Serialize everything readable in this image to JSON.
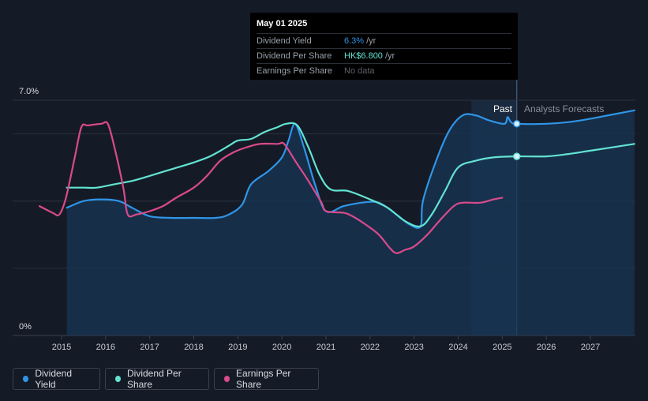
{
  "tooltip": {
    "date": "May 01 2025",
    "rows": [
      {
        "name": "Dividend Yield",
        "value": "6.3%",
        "unit": "/yr"
      },
      {
        "name": "Dividend Per Share",
        "value": "HK$6.800",
        "unit": "/yr"
      },
      {
        "name": "Earnings Per Share",
        "value": "No data",
        "unit": ""
      }
    ]
  },
  "labels": {
    "past": "Past",
    "forecast": "Analysts Forecasts"
  },
  "legend": {
    "items": [
      {
        "label": "Dividend Yield",
        "color": "#2f95e8"
      },
      {
        "label": "Dividend Per Share",
        "color": "#62e3d2"
      },
      {
        "label": "Earnings Per Share",
        "color": "#d94a8c"
      }
    ]
  },
  "chart_data": {
    "type": "line",
    "y_axis_labels": [
      "7.0%",
      "0%"
    ],
    "ylim": [
      0,
      7.0
    ],
    "x_ticks": [
      "2015",
      "2016",
      "2017",
      "2018",
      "2019",
      "2020",
      "2021",
      "2022",
      "2023",
      "2024",
      "2025",
      "2026",
      "2027"
    ],
    "xlim": [
      2014.0,
      2028.0
    ],
    "grid": true,
    "legend_position": "bottom",
    "highlight_date": 2025.33,
    "forecast_start": 2025.33,
    "series": [
      {
        "name": "Dividend Yield",
        "color": "#2f95e8",
        "filled": true,
        "points": [
          [
            2015.12,
            3.8
          ],
          [
            2015.5,
            4.0
          ],
          [
            2015.9,
            4.05
          ],
          [
            2016.3,
            4.0
          ],
          [
            2016.6,
            3.8
          ],
          [
            2017.0,
            3.55
          ],
          [
            2017.5,
            3.5
          ],
          [
            2018.0,
            3.5
          ],
          [
            2018.5,
            3.5
          ],
          [
            2018.8,
            3.6
          ],
          [
            2019.1,
            3.9
          ],
          [
            2019.3,
            4.5
          ],
          [
            2019.7,
            4.9
          ],
          [
            2020.0,
            5.3
          ],
          [
            2020.15,
            5.8
          ],
          [
            2020.3,
            6.3
          ],
          [
            2020.5,
            5.6
          ],
          [
            2020.75,
            4.5
          ],
          [
            2021.0,
            3.7
          ],
          [
            2021.4,
            3.85
          ],
          [
            2021.8,
            3.95
          ],
          [
            2022.2,
            3.95
          ],
          [
            2022.6,
            3.6
          ],
          [
            2022.9,
            3.3
          ],
          [
            2023.15,
            3.25
          ],
          [
            2023.2,
            4.0
          ],
          [
            2023.5,
            5.2
          ],
          [
            2023.8,
            6.1
          ],
          [
            2024.1,
            6.55
          ],
          [
            2024.4,
            6.55
          ],
          [
            2024.7,
            6.4
          ],
          [
            2025.05,
            6.3
          ],
          [
            2025.12,
            6.5
          ],
          [
            2025.2,
            6.35
          ],
          [
            2025.33,
            6.3
          ],
          [
            2026.0,
            6.3
          ],
          [
            2026.5,
            6.35
          ],
          [
            2027.0,
            6.45
          ],
          [
            2028.0,
            6.7
          ]
        ]
      },
      {
        "name": "Dividend Per Share",
        "color": "#62e3d2",
        "filled": false,
        "points": [
          [
            2015.12,
            4.4
          ],
          [
            2015.5,
            4.4
          ],
          [
            2015.8,
            4.4
          ],
          [
            2016.2,
            4.5
          ],
          [
            2016.6,
            4.6
          ],
          [
            2017.0,
            4.75
          ],
          [
            2017.5,
            4.95
          ],
          [
            2018.0,
            5.15
          ],
          [
            2018.4,
            5.35
          ],
          [
            2018.8,
            5.65
          ],
          [
            2019.0,
            5.8
          ],
          [
            2019.3,
            5.85
          ],
          [
            2019.6,
            6.05
          ],
          [
            2019.9,
            6.2
          ],
          [
            2020.1,
            6.3
          ],
          [
            2020.35,
            6.25
          ],
          [
            2020.6,
            5.6
          ],
          [
            2020.85,
            4.8
          ],
          [
            2021.1,
            4.35
          ],
          [
            2021.5,
            4.3
          ],
          [
            2022.0,
            4.05
          ],
          [
            2022.4,
            3.8
          ],
          [
            2022.8,
            3.4
          ],
          [
            2023.15,
            3.25
          ],
          [
            2023.4,
            3.6
          ],
          [
            2023.7,
            4.3
          ],
          [
            2024.0,
            5.0
          ],
          [
            2024.4,
            5.2
          ],
          [
            2024.8,
            5.3
          ],
          [
            2025.33,
            5.33
          ],
          [
            2026.0,
            5.33
          ],
          [
            2026.5,
            5.4
          ],
          [
            2027.0,
            5.5
          ],
          [
            2028.0,
            5.7
          ]
        ]
      },
      {
        "name": "Earnings Per Share",
        "color": "#d94a8c",
        "filled": false,
        "points": [
          [
            2014.5,
            3.85
          ],
          [
            2014.8,
            3.65
          ],
          [
            2014.95,
            3.6
          ],
          [
            2015.1,
            4.1
          ],
          [
            2015.3,
            5.3
          ],
          [
            2015.45,
            6.2
          ],
          [
            2015.6,
            6.25
          ],
          [
            2015.9,
            6.3
          ],
          [
            2016.05,
            6.3
          ],
          [
            2016.2,
            5.6
          ],
          [
            2016.4,
            4.4
          ],
          [
            2016.5,
            3.6
          ],
          [
            2016.7,
            3.6
          ],
          [
            2017.0,
            3.7
          ],
          [
            2017.3,
            3.85
          ],
          [
            2017.6,
            4.1
          ],
          [
            2018.0,
            4.4
          ],
          [
            2018.3,
            4.75
          ],
          [
            2018.6,
            5.2
          ],
          [
            2018.9,
            5.45
          ],
          [
            2019.2,
            5.6
          ],
          [
            2019.5,
            5.7
          ],
          [
            2019.9,
            5.7
          ],
          [
            2020.05,
            5.7
          ],
          [
            2020.3,
            5.2
          ],
          [
            2020.6,
            4.6
          ],
          [
            2020.9,
            3.95
          ],
          [
            2021.0,
            3.7
          ],
          [
            2021.4,
            3.65
          ],
          [
            2021.6,
            3.55
          ],
          [
            2021.9,
            3.3
          ],
          [
            2022.2,
            3.0
          ],
          [
            2022.45,
            2.6
          ],
          [
            2022.6,
            2.45
          ],
          [
            2022.8,
            2.55
          ],
          [
            2023.0,
            2.65
          ],
          [
            2023.3,
            3.0
          ],
          [
            2023.6,
            3.45
          ],
          [
            2023.9,
            3.85
          ],
          [
            2024.1,
            3.95
          ],
          [
            2024.5,
            3.95
          ],
          [
            2024.8,
            4.05
          ],
          [
            2025.0,
            4.1
          ]
        ]
      }
    ]
  }
}
